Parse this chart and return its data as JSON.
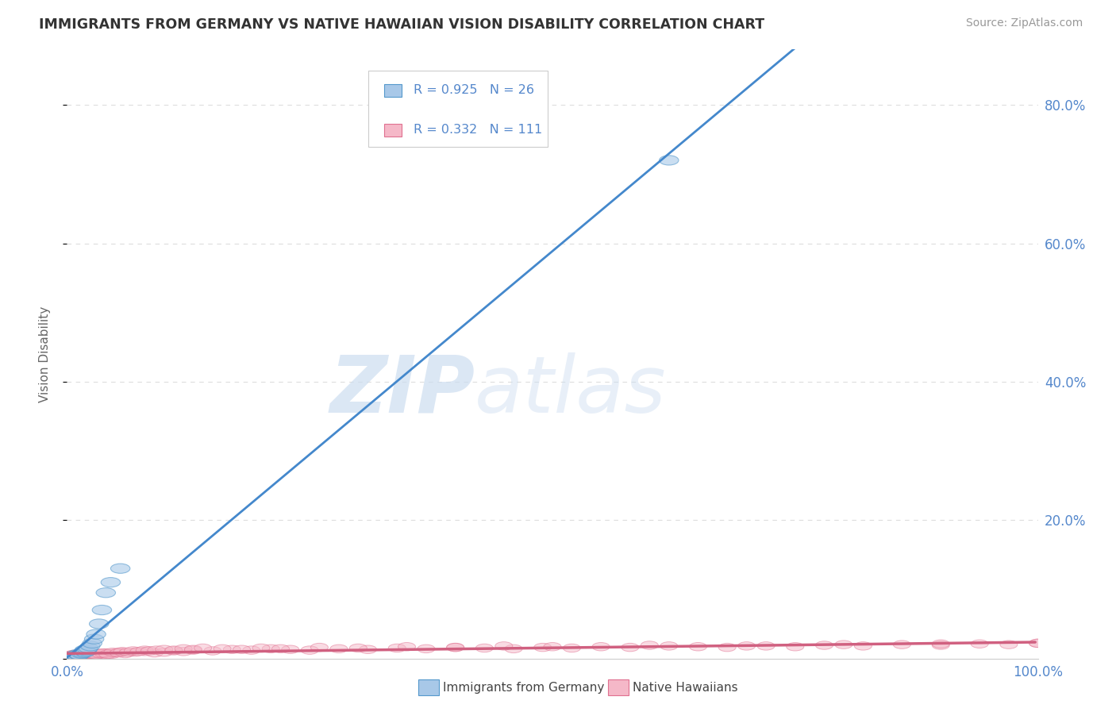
{
  "title": "IMMIGRANTS FROM GERMANY VS NATIVE HAWAIIAN VISION DISABILITY CORRELATION CHART",
  "source": "Source: ZipAtlas.com",
  "ylabel": "Vision Disability",
  "background_color": "#ffffff",
  "watermark_text": "ZIPatlas",
  "legend_R1": "R = 0.925",
  "legend_N1": "N = 26",
  "legend_R2": "R = 0.332",
  "legend_N2": "N = 111",
  "legend_label1": "Immigrants from Germany",
  "legend_label2": "Native Hawaiians",
  "blue_fill": "#a8c8e8",
  "blue_edge": "#5599cc",
  "pink_fill": "#f5b8c8",
  "pink_edge": "#e07090",
  "pink_line_color": "#d06080",
  "blue_line_color": "#4488cc",
  "title_color": "#333333",
  "source_color": "#999999",
  "axis_label_color": "#5588cc",
  "grid_color": "#dddddd",
  "xlim": [
    0.0,
    1.0
  ],
  "ylim": [
    0.0,
    0.88
  ],
  "ytick_vals": [
    0.0,
    0.2,
    0.4,
    0.6,
    0.8
  ],
  "ytick_labels": [
    "",
    "20.0%",
    "40.0%",
    "60.0%",
    "80.0%"
  ],
  "blue_x": [
    0.005,
    0.007,
    0.008,
    0.009,
    0.01,
    0.011,
    0.012,
    0.013,
    0.015,
    0.016,
    0.017,
    0.018,
    0.019,
    0.02,
    0.021,
    0.022,
    0.024,
    0.026,
    0.028,
    0.03,
    0.033,
    0.036,
    0.04,
    0.045,
    0.055,
    0.62
  ],
  "blue_y": [
    0.002,
    0.003,
    0.004,
    0.003,
    0.004,
    0.006,
    0.005,
    0.005,
    0.007,
    0.008,
    0.01,
    0.012,
    0.009,
    0.011,
    0.013,
    0.015,
    0.018,
    0.022,
    0.028,
    0.035,
    0.05,
    0.07,
    0.095,
    0.11,
    0.13,
    0.72
  ],
  "pink_x": [
    0.002,
    0.003,
    0.004,
    0.005,
    0.006,
    0.007,
    0.008,
    0.009,
    0.01,
    0.011,
    0.012,
    0.013,
    0.014,
    0.015,
    0.016,
    0.017,
    0.018,
    0.019,
    0.02,
    0.021,
    0.022,
    0.023,
    0.025,
    0.027,
    0.029,
    0.032,
    0.035,
    0.038,
    0.04,
    0.043,
    0.046,
    0.05,
    0.055,
    0.06,
    0.07,
    0.08,
    0.09,
    0.1,
    0.11,
    0.12,
    0.13,
    0.15,
    0.17,
    0.19,
    0.21,
    0.23,
    0.25,
    0.28,
    0.31,
    0.34,
    0.37,
    0.4,
    0.43,
    0.46,
    0.49,
    0.52,
    0.55,
    0.58,
    0.62,
    0.65,
    0.68,
    0.72,
    0.75,
    0.78,
    0.82,
    0.86,
    0.9,
    0.94,
    0.97,
    1.0,
    0.003,
    0.006,
    0.008,
    0.011,
    0.014,
    0.016,
    0.024,
    0.026,
    0.03,
    0.034,
    0.037,
    0.042,
    0.047,
    0.053,
    0.057,
    0.063,
    0.068,
    0.074,
    0.08,
    0.085,
    0.092,
    0.1,
    0.11,
    0.12,
    0.13,
    0.14,
    0.16,
    0.18,
    0.2,
    0.22,
    0.26,
    0.3,
    0.35,
    0.4,
    0.45,
    0.5,
    0.6,
    0.7,
    0.8,
    0.9,
    1.0
  ],
  "pink_y": [
    0.003,
    0.004,
    0.003,
    0.005,
    0.004,
    0.006,
    0.004,
    0.005,
    0.004,
    0.006,
    0.005,
    0.006,
    0.005,
    0.006,
    0.005,
    0.004,
    0.006,
    0.005,
    0.007,
    0.006,
    0.005,
    0.007,
    0.006,
    0.005,
    0.007,
    0.006,
    0.007,
    0.006,
    0.008,
    0.007,
    0.006,
    0.008,
    0.009,
    0.007,
    0.009,
    0.01,
    0.008,
    0.009,
    0.011,
    0.01,
    0.012,
    0.011,
    0.013,
    0.012,
    0.014,
    0.013,
    0.012,
    0.014,
    0.013,
    0.015,
    0.014,
    0.016,
    0.015,
    0.014,
    0.016,
    0.015,
    0.017,
    0.016,
    0.018,
    0.017,
    0.016,
    0.018,
    0.017,
    0.019,
    0.018,
    0.02,
    0.019,
    0.021,
    0.02,
    0.022,
    0.003,
    0.004,
    0.005,
    0.004,
    0.007,
    0.006,
    0.006,
    0.007,
    0.005,
    0.007,
    0.008,
    0.006,
    0.009,
    0.008,
    0.01,
    0.009,
    0.011,
    0.01,
    0.012,
    0.011,
    0.012,
    0.013,
    0.012,
    0.014,
    0.013,
    0.015,
    0.014,
    0.013,
    0.015,
    0.014,
    0.016,
    0.015,
    0.017,
    0.016,
    0.018,
    0.017,
    0.019,
    0.018,
    0.02,
    0.021,
    0.022
  ]
}
